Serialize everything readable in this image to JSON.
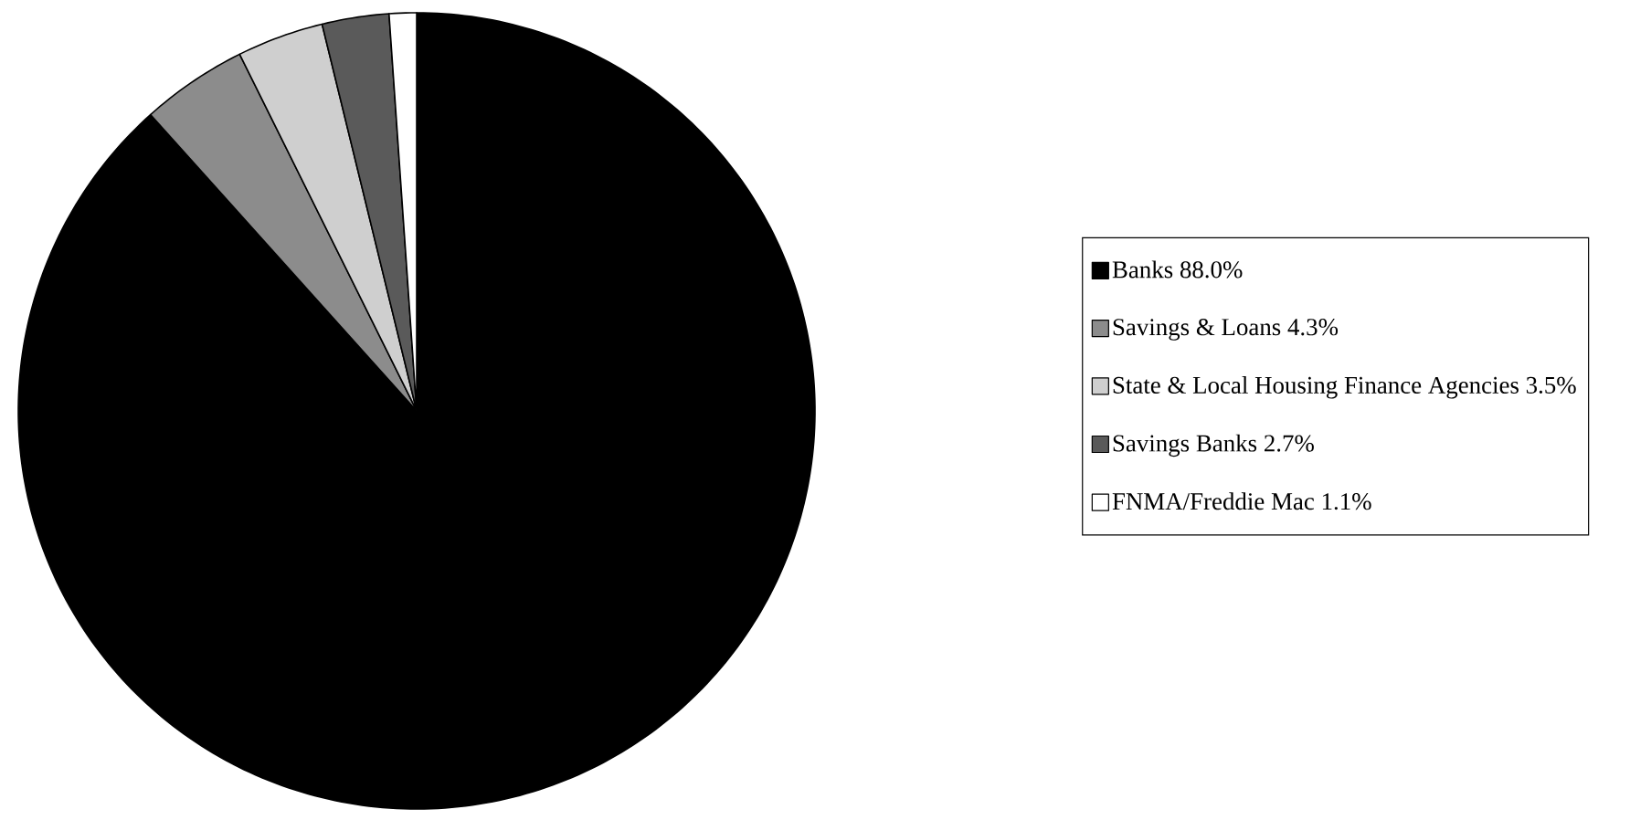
{
  "chart_data": {
    "type": "pie",
    "categories": [
      "Banks",
      "Savings & Loans",
      "State & Local Housing Finance Agencies",
      "Savings Banks",
      "FNMA/Freddie Mac"
    ],
    "values": [
      88.0,
      4.3,
      3.5,
      2.7,
      1.1
    ],
    "value_labels": [
      "88.0%",
      "4.3%",
      "3.5%",
      "2.7%",
      "1.1%"
    ],
    "colors": [
      "#000000",
      "#8c8c8c",
      "#cfcfcf",
      "#5a5a5a",
      "#ffffff"
    ],
    "legend": "right"
  }
}
